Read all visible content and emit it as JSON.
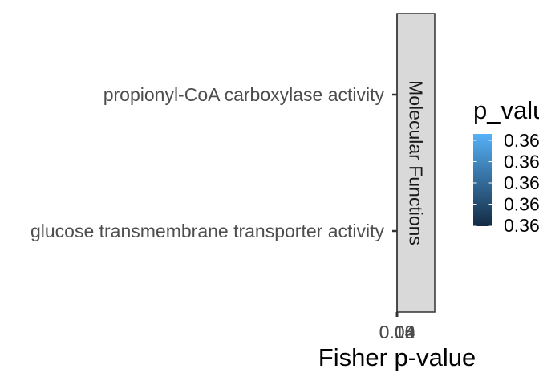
{
  "chart_data": {
    "type": "bar",
    "orientation": "horizontal",
    "facet": "Molecular Functions",
    "categories": [
      "propionyl-CoA carboxylase activity",
      "glucose transmembrane transporter activity"
    ],
    "series": [
      {
        "values": [
          0,
          0
        ]
      }
    ],
    "xlabel": "Fisher p-value",
    "ylabel": "",
    "x_tick_labels": [
      "0.00",
      "0.04",
      "0.08",
      "0.12"
    ],
    "legend": {
      "title": "p_value",
      "labels": [
        "0.36",
        "0.36",
        "0.36",
        "0.36",
        "0.36"
      ],
      "gradient_colors": [
        "#56B1F7",
        "#132B43"
      ],
      "placement": "right"
    },
    "grid": false
  }
}
